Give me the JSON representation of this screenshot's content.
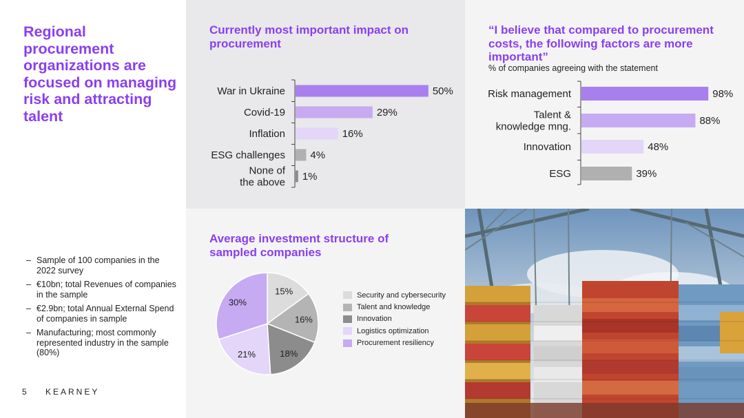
{
  "slide": {
    "title": "Regional procurement organizations are focused on managing risk and attracting talent",
    "notes": [
      "Sample of 100 companies in the 2022 survey",
      "€10bn; total Revenues of companies in the sample",
      "€2.9bn; total Annual External Spend of companies in sample",
      "Manufacturing; most commonly represented industry in the sample (80%)"
    ],
    "page_number": "5",
    "brand": "KEARNEY",
    "photo_icon": "container-port-cranes-photo"
  },
  "colors": {
    "accent": "#8a3ff0",
    "violet_strong": "#a880ee",
    "violet_mid": "#c6aaf2",
    "violet_light": "#e3d6f8",
    "grey_dark": "#8c8c8c",
    "grey_mid": "#b0b0b0",
    "grey_light": "#d2d2d2",
    "panel_grey": "#e9e8ea",
    "panel_light": "#f4f4f5"
  },
  "chart_data": [
    {
      "type": "bar",
      "orientation": "horizontal",
      "title": "Currently most important impact on procurement",
      "categories": [
        "War in Ukraine",
        "Covid-19",
        "Inflation",
        "ESG challenges",
        "None of the above"
      ],
      "values": [
        50,
        29,
        16,
        4,
        1
      ],
      "value_labels": [
        "50%",
        "29%",
        "16%",
        "4%",
        "1%"
      ],
      "colors": [
        "#a880ee",
        "#c6aaf2",
        "#e3d6f8",
        "#b0b0b0",
        "#8c8c8c"
      ],
      "xlim": [
        0,
        56
      ],
      "grid": false,
      "legend": "none"
    },
    {
      "type": "bar",
      "orientation": "horizontal",
      "title": "“I believe that compared to procurement costs, the following factors are more important”",
      "subtitle": "% of companies agreeing with the statement",
      "categories": [
        "Risk management",
        "Talent & knowledge mng.",
        "Innovation",
        "ESG"
      ],
      "values": [
        98,
        88,
        48,
        39
      ],
      "value_labels": [
        "98%",
        "88%",
        "48%",
        "39%"
      ],
      "colors": [
        "#a880ee",
        "#c6aaf2",
        "#e3d6f8",
        "#b0b0b0"
      ],
      "xlim": [
        0,
        100
      ],
      "grid": false,
      "legend": "none"
    },
    {
      "type": "pie",
      "title": "Average investment structure of sampled companies",
      "labels": [
        "Security and cybersecurity",
        "Talent and knowledge",
        "Innovation",
        "Logistics optimization",
        "Procurement resiliency"
      ],
      "values": [
        15,
        16,
        18,
        21,
        30
      ],
      "value_labels": [
        "15%",
        "16%",
        "18%",
        "21%",
        "30%"
      ],
      "colors": [
        "#dcdcdc",
        "#b4b4b4",
        "#8c8c8c",
        "#e3d6f8",
        "#c6aaf2"
      ],
      "legend": "right"
    }
  ]
}
